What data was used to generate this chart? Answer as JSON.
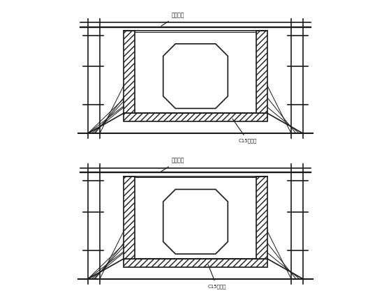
{
  "bg_color": "#ffffff",
  "line_color": "#1a1a1a",
  "hatch_color": "#333333",
  "label_top": "龙骨标尺",
  "label_bottom": "C15垫层地",
  "fig_width": 5.6,
  "fig_height": 4.2,
  "dpi": 100
}
